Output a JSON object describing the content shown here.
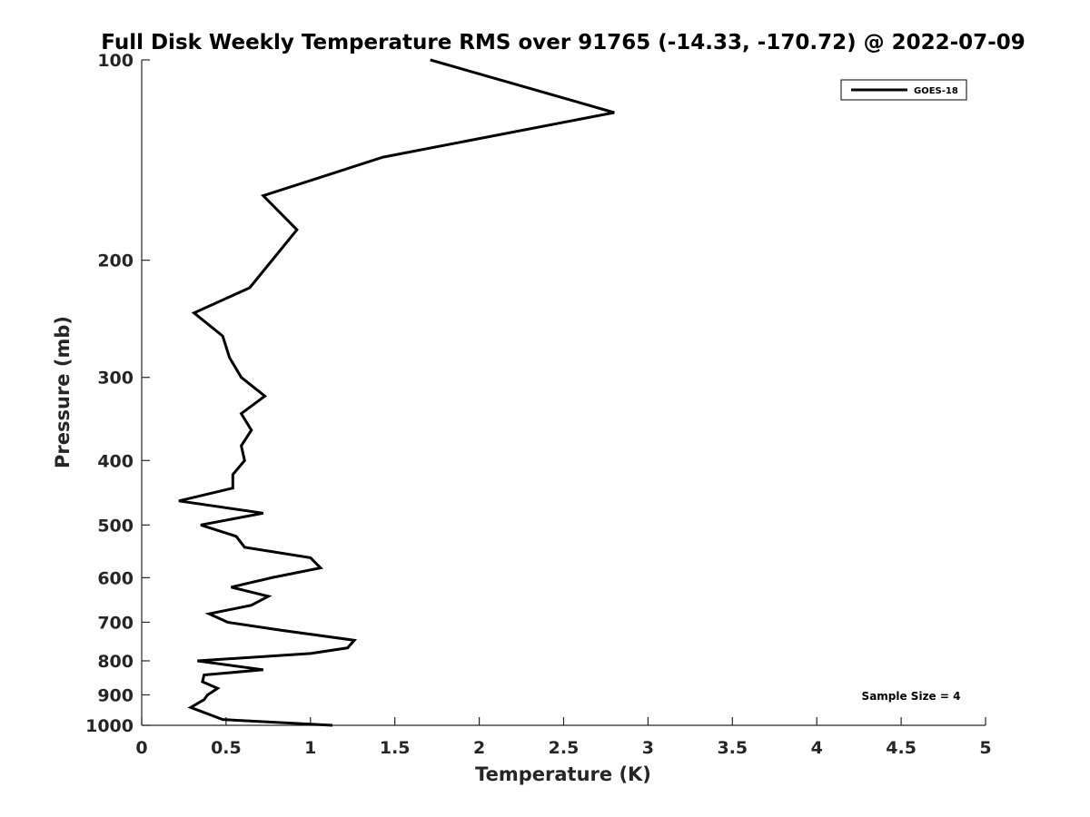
{
  "chart_data": {
    "type": "line",
    "title": "Full Disk Weekly Temperature RMS over 91765 (-14.33, -170.72) @ 2022-07-09",
    "xlabel": "Temperature (K)",
    "ylabel": "Pressure (mb)",
    "xlim": [
      0,
      5
    ],
    "ylim": [
      100,
      1000
    ],
    "yscale": "log",
    "yreversed": true,
    "xticks": [
      0,
      0.5,
      1,
      1.5,
      2,
      2.5,
      3,
      3.5,
      4,
      4.5,
      5
    ],
    "xtick_labels": [
      "0",
      "0.5",
      "1",
      "1.5",
      "2",
      "2.5",
      "3",
      "3.5",
      "4",
      "4.5",
      "5"
    ],
    "yticks": [
      100,
      200,
      300,
      400,
      500,
      600,
      700,
      800,
      900,
      1000
    ],
    "ytick_labels": [
      "100",
      "200",
      "300",
      "400",
      "500",
      "600",
      "700",
      "800",
      "900",
      "1000"
    ],
    "grid": false,
    "legend": {
      "entries": [
        "GOES-18"
      ],
      "placement": "top-right"
    },
    "annotation": "Sample Size = 4",
    "series": [
      {
        "name": "GOES-18",
        "color": "#000000",
        "temperature": [
          1.71,
          2.8,
          1.43,
          0.72,
          0.92,
          0.64,
          0.31,
          0.48,
          0.52,
          0.59,
          0.73,
          0.59,
          0.65,
          0.59,
          0.61,
          0.54,
          0.54,
          0.22,
          0.72,
          0.35,
          0.56,
          0.61,
          1.0,
          1.06,
          0.77,
          0.53,
          0.75,
          0.65,
          0.4,
          0.51,
          0.83,
          1.26,
          1.22,
          1.0,
          0.33,
          0.72,
          0.37,
          0.36,
          0.45,
          0.39,
          0.37,
          0.29,
          0.48,
          1.13
        ],
        "pressure": [
          100,
          120,
          140,
          160,
          180,
          220,
          240,
          260,
          280,
          300,
          320,
          340,
          360,
          380,
          400,
          420,
          440,
          460,
          480,
          500,
          520,
          540,
          560,
          580,
          600,
          620,
          640,
          660,
          680,
          700,
          720,
          745,
          765,
          780,
          800,
          825,
          840,
          860,
          880,
          900,
          915,
          940,
          980,
          1000
        ]
      }
    ]
  }
}
